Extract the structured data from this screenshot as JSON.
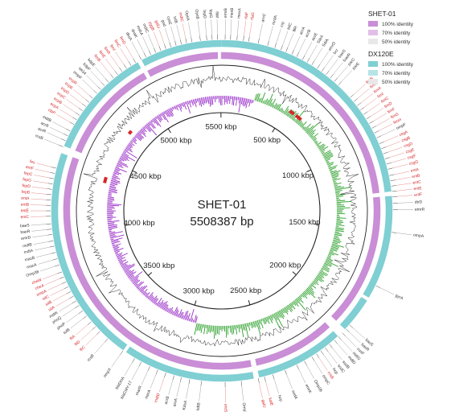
{
  "genome": {
    "name": "SHET-01",
    "size_label": "5508387 bp",
    "size_bp": 5508387
  },
  "ticks": [
    {
      "label": "500 kbp",
      "bp": 500000
    },
    {
      "label": "1000 kbp",
      "bp": 1000000
    },
    {
      "label": "1500 kbp",
      "bp": 1500000
    },
    {
      "label": "2000 kbp",
      "bp": 2000000
    },
    {
      "label": "2500 kbp",
      "bp": 2500000
    },
    {
      "label": "3000 kbp",
      "bp": 3000000
    },
    {
      "label": "3500 kbp",
      "bp": 3500000
    },
    {
      "label": "4000 kbp",
      "bp": 4000000
    },
    {
      "label": "4500 kbp",
      "bp": 4500000
    },
    {
      "label": "5000 kbp",
      "bp": 5000000
    },
    {
      "label": "5500 kbp",
      "bp": 5500000
    }
  ],
  "legend": {
    "groups": [
      {
        "title": "SHET-01",
        "entries": [
          {
            "label": "100% identity",
            "color": "#c98ed6"
          },
          {
            "label": "70% identity",
            "color": "#e2bfe9"
          },
          {
            "label": "50% identity",
            "color": "#e8e8e8"
          }
        ]
      },
      {
        "title": "DX120E",
        "entries": [
          {
            "label": "100% identity",
            "color": "#7fcfd3"
          },
          {
            "label": "70% identity",
            "color": "#b7e4e6"
          },
          {
            "label": "50% identity",
            "color": "#e8e8e8"
          }
        ]
      }
    ]
  },
  "colors": {
    "ring_outer": "#7fcfd3",
    "ring_inner": "#c98ed6",
    "gc_content": "#111111",
    "gc_skew_positive": "#2ca02c",
    "gc_skew_negative": "#9b30c8",
    "virulence_gene": "#d62728",
    "other_gene": "#333333"
  },
  "genes": [
    {
      "name": "OpsA",
      "pos": 0.972,
      "red": false
    },
    {
      "name": "OpsB",
      "pos": 0.98,
      "red": false
    },
    {
      "name": "fepD",
      "pos": 0.986,
      "red": false
    },
    {
      "name": "fepG",
      "pos": 0.991,
      "red": false
    },
    {
      "name": "fliM",
      "pos": 0.996,
      "red": false
    },
    {
      "name": "emrB",
      "pos": 0.003,
      "red": false
    },
    {
      "name": "mexB",
      "pos": 0.008,
      "red": false
    },
    {
      "name": "mexA",
      "pos": 0.014,
      "red": false
    },
    {
      "name": "rfaF",
      "pos": 0.02,
      "red": true
    },
    {
      "name": "rfaG",
      "pos": 0.025,
      "red": true
    },
    {
      "name": "arnC",
      "pos": 0.034,
      "red": false
    },
    {
      "name": "mrdA",
      "pos": 0.043,
      "red": false
    },
    {
      "name": "crp",
      "pos": 0.05,
      "red": false
    },
    {
      "name": "tolC",
      "pos": 0.056,
      "red": false
    },
    {
      "name": "fliR",
      "pos": 0.061,
      "red": false
    },
    {
      "name": "acrA",
      "pos": 0.067,
      "red": false
    },
    {
      "name": "acrB",
      "pos": 0.072,
      "red": false
    },
    {
      "name": "acrE",
      "pos": 0.078,
      "red": false
    },
    {
      "name": "SdrA",
      "pos": 0.083,
      "red": false
    },
    {
      "name": "SdiA",
      "pos": 0.088,
      "red": false
    },
    {
      "name": "emrD",
      "pos": 0.094,
      "red": false
    },
    {
      "name": "bcr",
      "pos": 0.099,
      "red": false
    },
    {
      "name": "baeS",
      "pos": 0.104,
      "red": false
    },
    {
      "name": "baeR",
      "pos": 0.109,
      "red": false
    },
    {
      "name": "parC",
      "pos": 0.114,
      "red": false
    },
    {
      "name": "parE",
      "pos": 0.119,
      "red": false
    },
    {
      "name": "fimB",
      "pos": 0.135,
      "red": true
    },
    {
      "name": "fimE",
      "pos": 0.14,
      "red": true
    },
    {
      "name": "fimA",
      "pos": 0.145,
      "red": true
    },
    {
      "name": "fimI",
      "pos": 0.15,
      "red": true
    },
    {
      "name": "fimC",
      "pos": 0.155,
      "red": true
    },
    {
      "name": "fimD",
      "pos": 0.16,
      "red": true
    },
    {
      "name": "fimF",
      "pos": 0.165,
      "red": true
    },
    {
      "name": "fimG",
      "pos": 0.17,
      "red": true
    },
    {
      "name": "fimH",
      "pos": 0.175,
      "red": true
    },
    {
      "name": "ompF",
      "pos": 0.18,
      "red": false
    },
    {
      "name": "csgA",
      "pos": 0.186,
      "red": true
    },
    {
      "name": "csgB",
      "pos": 0.191,
      "red": true
    },
    {
      "name": "csgD",
      "pos": 0.196,
      "red": true
    },
    {
      "name": "csgE",
      "pos": 0.201,
      "red": true
    },
    {
      "name": "csgF",
      "pos": 0.206,
      "red": true
    },
    {
      "name": "csgG",
      "pos": 0.211,
      "red": true
    },
    {
      "name": "entA",
      "pos": 0.217,
      "red": true
    },
    {
      "name": "entB",
      "pos": 0.222,
      "red": true
    },
    {
      "name": "entC",
      "pos": 0.227,
      "red": true
    },
    {
      "name": "entE",
      "pos": 0.232,
      "red": true
    },
    {
      "name": "entF",
      "pos": 0.237,
      "red": true
    },
    {
      "name": "dtrD",
      "pos": 0.243,
      "red": false
    },
    {
      "name": "emrR",
      "pos": 0.249,
      "red": false
    },
    {
      "name": "ompA",
      "pos": 0.27,
      "red": false
    },
    {
      "name": "gyrA",
      "pos": 0.322,
      "red": false
    },
    {
      "name": "basS",
      "pos": 0.366,
      "red": false
    },
    {
      "name": "basR",
      "pos": 0.371,
      "red": false
    },
    {
      "name": "cusF",
      "pos": 0.376,
      "red": false
    },
    {
      "name": "mdtG",
      "pos": 0.381,
      "red": false
    },
    {
      "name": "mdtD",
      "pos": 0.386,
      "red": false
    },
    {
      "name": "sodB",
      "pos": 0.392,
      "red": false
    },
    {
      "name": "sodC",
      "pos": 0.397,
      "red": false
    },
    {
      "name": "hcp",
      "pos": 0.402,
      "red": false
    },
    {
      "name": "rcsB",
      "pos": 0.407,
      "red": true
    },
    {
      "name": "ompC",
      "pos": 0.412,
      "red": false
    },
    {
      "name": "Omp36",
      "pos": 0.42,
      "red": false
    },
    {
      "name": "emrK",
      "pos": 0.428,
      "red": false
    },
    {
      "name": "sodA",
      "pos": 0.44,
      "red": false
    },
    {
      "name": "hcp",
      "pos": 0.452,
      "red": false
    },
    {
      "name": "katE",
      "pos": 0.46,
      "red": true
    },
    {
      "name": "galU",
      "pos": 0.466,
      "red": true
    },
    {
      "name": "Omp36",
      "pos": 0.482,
      "red": false
    },
    {
      "name": "entS",
      "pos": 0.497,
      "red": true
    },
    {
      "name": "kdtB",
      "pos": 0.519,
      "red": false
    },
    {
      "name": "KdsA",
      "pos": 0.53,
      "red": false
    },
    {
      "name": "acrA",
      "pos": 0.538,
      "red": false
    },
    {
      "name": "acrB",
      "pos": 0.545,
      "red": false
    },
    {
      "name": "mdtD",
      "pos": 0.553,
      "red": true
    },
    {
      "name": "marA",
      "pos": 0.561,
      "red": false
    },
    {
      "name": "marR",
      "pos": 0.569,
      "red": false
    },
    {
      "name": "blaCMY-17",
      "pos": 0.578,
      "red": false
    },
    {
      "name": "blaDHA",
      "pos": 0.585,
      "red": false
    },
    {
      "name": "ompX",
      "pos": 0.598,
      "red": false
    },
    {
      "name": "rcsB",
      "pos": 0.616,
      "red": false
    },
    {
      "name": "fliC",
      "pos": 0.626,
      "red": true
    },
    {
      "name": "fliD",
      "pos": 0.632,
      "red": true
    },
    {
      "name": "fliA",
      "pos": 0.638,
      "red": true
    },
    {
      "name": "tolB",
      "pos": 0.645,
      "red": false
    },
    {
      "name": "phoP",
      "pos": 0.651,
      "red": false
    },
    {
      "name": "phoQ",
      "pos": 0.657,
      "red": false
    },
    {
      "name": "mdtK",
      "pos": 0.662,
      "red": false
    },
    {
      "name": "sitA",
      "pos": 0.667,
      "red": true
    },
    {
      "name": "sitB",
      "pos": 0.672,
      "red": true
    },
    {
      "name": "sitC",
      "pos": 0.677,
      "red": true
    },
    {
      "name": "ompA",
      "pos": 0.682,
      "red": true
    },
    {
      "name": "cheA",
      "pos": 0.687,
      "red": true
    },
    {
      "name": "cheW",
      "pos": 0.692,
      "red": true
    },
    {
      "name": "Omp38",
      "pos": 0.699,
      "red": false
    },
    {
      "name": "macA",
      "pos": 0.705,
      "red": false
    },
    {
      "name": "macB",
      "pos": 0.711,
      "red": false
    },
    {
      "name": "mdtA",
      "pos": 0.717,
      "red": false
    },
    {
      "name": "mdtB",
      "pos": 0.722,
      "red": false
    },
    {
      "name": "emrD",
      "pos": 0.728,
      "red": false
    },
    {
      "name": "baeR",
      "pos": 0.733,
      "red": false
    },
    {
      "name": "baeS",
      "pos": 0.738,
      "red": false
    },
    {
      "name": "entC",
      "pos": 0.745,
      "red": true
    },
    {
      "name": "entE",
      "pos": 0.75,
      "red": true
    },
    {
      "name": "entB",
      "pos": 0.755,
      "red": true
    },
    {
      "name": "entA",
      "pos": 0.76,
      "red": true
    },
    {
      "name": "fepB",
      "pos": 0.765,
      "red": true
    },
    {
      "name": "fepD",
      "pos": 0.77,
      "red": true
    },
    {
      "name": "fepG",
      "pos": 0.775,
      "red": true
    },
    {
      "name": "fepC",
      "pos": 0.78,
      "red": true
    },
    {
      "name": "entF",
      "pos": 0.785,
      "red": true
    },
    {
      "name": "fes",
      "pos": 0.79,
      "red": true
    },
    {
      "name": "rcsB",
      "pos": 0.811,
      "red": false
    },
    {
      "name": "acrR",
      "pos": 0.817,
      "red": false
    },
    {
      "name": "acrB",
      "pos": 0.822,
      "red": false
    },
    {
      "name": "mdtB",
      "pos": 0.827,
      "red": false
    },
    {
      "name": "clpP",
      "pos": 0.834,
      "red": true
    },
    {
      "name": "ecpA",
      "pos": 0.839,
      "red": true
    },
    {
      "name": "ecpB",
      "pos": 0.844,
      "red": true
    },
    {
      "name": "ecpC",
      "pos": 0.849,
      "red": true
    },
    {
      "name": "ecpD",
      "pos": 0.854,
      "red": true
    },
    {
      "name": "ecpE",
      "pos": 0.859,
      "red": true
    },
    {
      "name": "ecpR",
      "pos": 0.864,
      "red": true
    },
    {
      "name": "ompF",
      "pos": 0.87,
      "red": false
    },
    {
      "name": "tet34",
      "pos": 0.875,
      "red": false
    },
    {
      "name": "kdpF",
      "pos": 0.88,
      "red": false
    },
    {
      "name": "kdpE",
      "pos": 0.885,
      "red": false
    },
    {
      "name": "fimB",
      "pos": 0.891,
      "red": true
    },
    {
      "name": "fimE",
      "pos": 0.896,
      "red": true
    },
    {
      "name": "fimA",
      "pos": 0.901,
      "red": true
    },
    {
      "name": "fimI",
      "pos": 0.906,
      "red": true
    },
    {
      "name": "fimC",
      "pos": 0.911,
      "red": true
    },
    {
      "name": "fimD",
      "pos": 0.916,
      "red": true
    },
    {
      "name": "dksA",
      "pos": 0.922,
      "red": false
    },
    {
      "name": "dnaK",
      "pos": 0.927,
      "red": false
    },
    {
      "name": "msbA",
      "pos": 0.932,
      "red": false
    },
    {
      "name": "mdtC",
      "pos": 0.937,
      "red": false
    },
    {
      "name": "yggB",
      "pos": 0.942,
      "red": true
    },
    {
      "name": "galU",
      "pos": 0.947,
      "red": true
    },
    {
      "name": "gnd",
      "pos": 0.952,
      "red": false
    },
    {
      "name": "cysE",
      "pos": 0.957,
      "red": false
    },
    {
      "name": "tolB",
      "pos": 0.962,
      "red": false
    },
    {
      "name": "mdtC",
      "pos": 0.967,
      "red": true
    }
  ]
}
